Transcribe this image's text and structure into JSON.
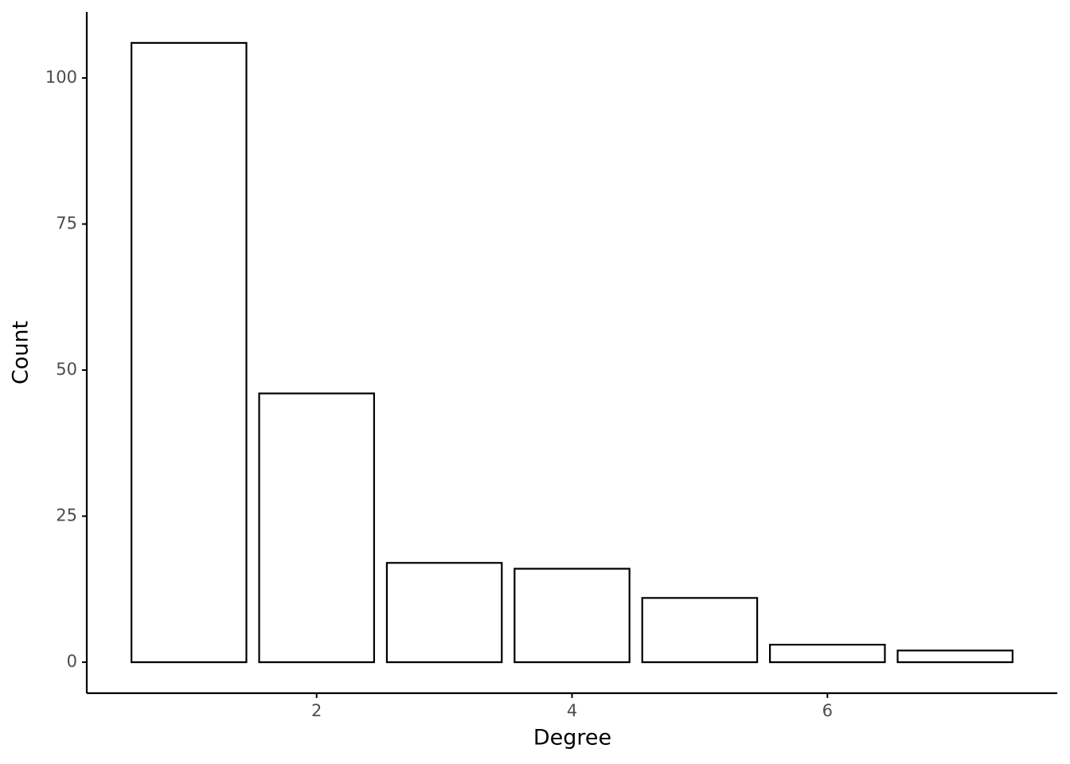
{
  "chart_data": {
    "type": "bar",
    "x": [
      1,
      2,
      3,
      4,
      5,
      6,
      7
    ],
    "values": [
      106,
      46,
      17,
      16,
      11,
      3,
      2
    ],
    "color": "#ffffff",
    "edgecolor": "#000000",
    "xlim": [
      0.2,
      7.8
    ],
    "xticks": [
      2,
      4,
      6
    ],
    "ylim": [
      -5.3,
      111.3
    ],
    "yticks": [
      0,
      25,
      50,
      75,
      100
    ],
    "xlabel": "Degree",
    "ylabel": "Count",
    "grid": false
  }
}
